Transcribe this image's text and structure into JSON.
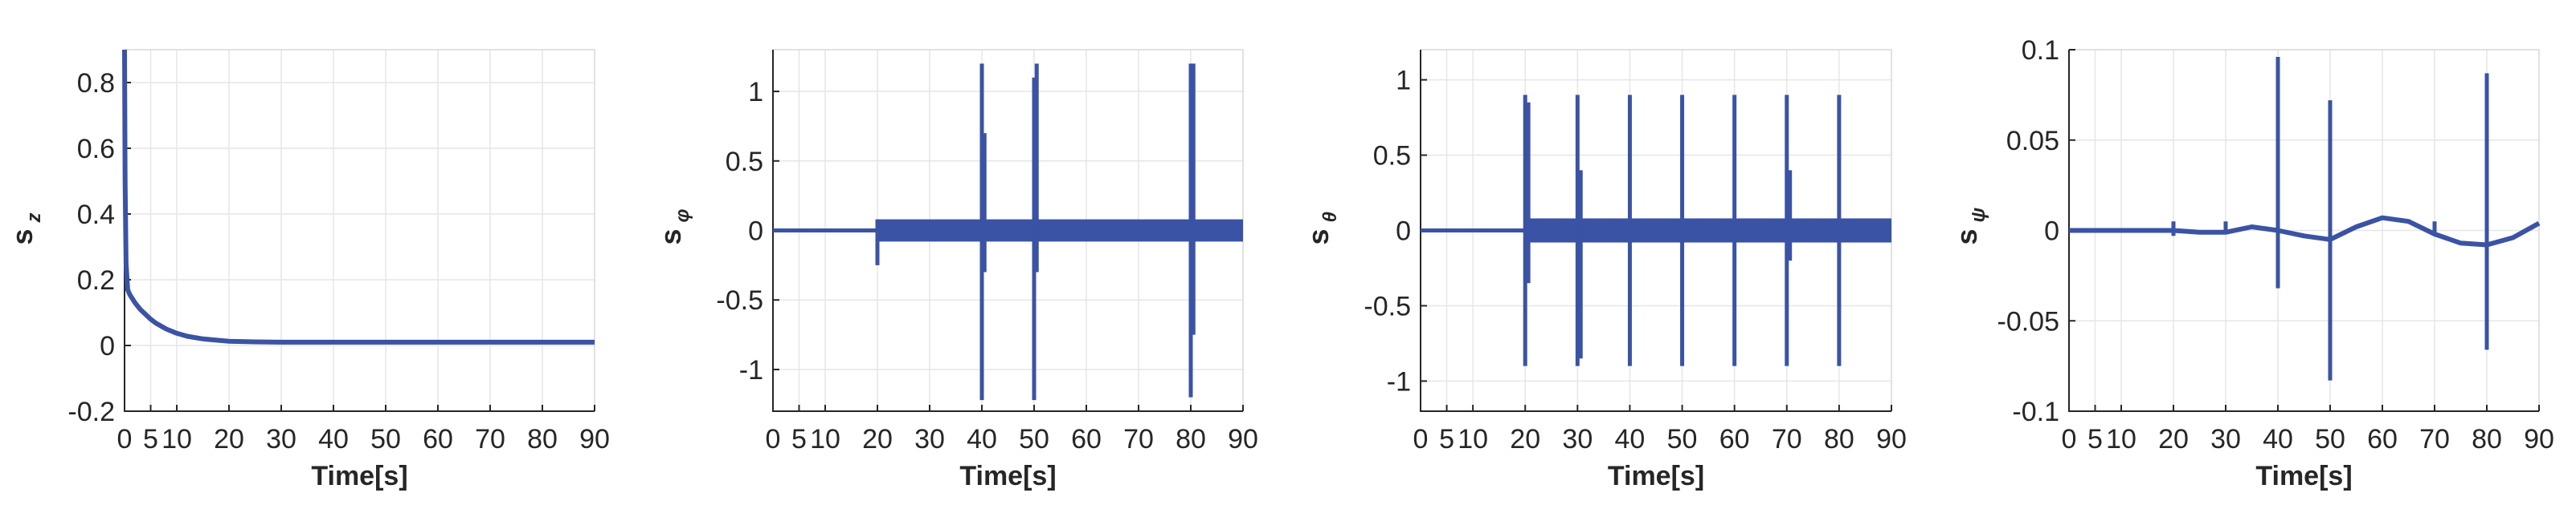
{
  "chart_data": [
    {
      "type": "line",
      "ylabel": "s",
      "ylabel_sub": "z",
      "xlabel": "Time[s]",
      "xlim": [
        0,
        90
      ],
      "ylim": [
        -0.2,
        0.9
      ],
      "grid": true,
      "x_ticks": [
        0,
        5,
        10,
        20,
        30,
        40,
        50,
        60,
        70,
        80,
        90
      ],
      "x_tick_labels": [
        "0",
        "5",
        "10",
        "20",
        "30",
        "40",
        "50",
        "60",
        "70",
        "80",
        "90"
      ],
      "y_ticks": [
        -0.2,
        0,
        0.2,
        0.4,
        0.6,
        0.8
      ],
      "y_tick_labels": [
        "-0.2",
        "0",
        "0.2",
        "0.4",
        "0.6",
        "0.8"
      ],
      "color": "#3a53a4",
      "series": [
        {
          "x": [
            0,
            0.1,
            0.3,
            0.6,
            1,
            2,
            3,
            4,
            5,
            6,
            8,
            10,
            12,
            15,
            20,
            25,
            30,
            40,
            50,
            60,
            70,
            80,
            90
          ],
          "y": [
            0.9,
            0.5,
            0.25,
            0.17,
            0.155,
            0.13,
            0.11,
            0.095,
            0.08,
            0.068,
            0.05,
            0.037,
            0.028,
            0.02,
            0.013,
            0.011,
            0.01,
            0.01,
            0.01,
            0.01,
            0.01,
            0.01,
            0.01
          ]
        }
      ]
    },
    {
      "type": "line",
      "ylabel": "s",
      "ylabel_sub": "φ",
      "xlabel": "Time[s]",
      "xlim": [
        0,
        90
      ],
      "ylim": [
        -1.3,
        1.3
      ],
      "grid": true,
      "x_ticks": [
        0,
        5,
        10,
        20,
        30,
        40,
        50,
        60,
        70,
        80,
        90
      ],
      "x_tick_labels": [
        "0",
        "5",
        "10",
        "20",
        "30",
        "40",
        "50",
        "60",
        "70",
        "80",
        "90"
      ],
      "y_ticks": [
        -1,
        -0.5,
        0,
        0.5,
        1
      ],
      "y_tick_labels": [
        "-1",
        "-0.5",
        "0",
        "0.5",
        "1"
      ],
      "color": "#3a53a4",
      "baseline": 0,
      "band": {
        "x_start": 20,
        "x_end": 90,
        "upper": 0.08,
        "lower": -0.08
      },
      "spikes": [
        {
          "x": 20,
          "ymax": 0.08,
          "ymin": -0.25
        },
        {
          "x": 40,
          "ymax": 1.2,
          "ymin": -1.22
        },
        {
          "x": 40.5,
          "ymax": 0.7,
          "ymin": -0.3
        },
        {
          "x": 50,
          "ymax": 1.1,
          "ymin": -1.22
        },
        {
          "x": 50.5,
          "ymax": 1.2,
          "ymin": -0.3
        },
        {
          "x": 80,
          "ymax": 1.2,
          "ymin": -1.2
        },
        {
          "x": 80.5,
          "ymax": 1.2,
          "ymin": -0.75
        }
      ]
    },
    {
      "type": "line",
      "ylabel": "s",
      "ylabel_sub": "θ",
      "xlabel": "Time[s]",
      "xlim": [
        0,
        90
      ],
      "ylim": [
        -1.2,
        1.2
      ],
      "grid": true,
      "x_ticks": [
        0,
        5,
        10,
        20,
        30,
        40,
        50,
        60,
        70,
        80,
        90
      ],
      "x_tick_labels": [
        "0",
        "5",
        "10",
        "20",
        "30",
        "40",
        "50",
        "60",
        "70",
        "80",
        "90"
      ],
      "y_ticks": [
        -1,
        -0.5,
        0,
        0.5,
        1
      ],
      "y_tick_labels": [
        "-1",
        "-0.5",
        "0",
        "0.5",
        "1"
      ],
      "color": "#3a53a4",
      "baseline": 0,
      "band": {
        "x_start": 20,
        "x_end": 90,
        "upper": 0.08,
        "lower": -0.08
      },
      "spikes": [
        {
          "x": 20,
          "ymax": 0.9,
          "ymin": -0.9
        },
        {
          "x": 20.6,
          "ymax": 0.85,
          "ymin": -0.35
        },
        {
          "x": 30,
          "ymax": 0.9,
          "ymin": -0.9
        },
        {
          "x": 30.6,
          "ymax": 0.4,
          "ymin": -0.85
        },
        {
          "x": 40,
          "ymax": 0.9,
          "ymin": -0.9
        },
        {
          "x": 50,
          "ymax": 0.9,
          "ymin": -0.9
        },
        {
          "x": 60,
          "ymax": 0.9,
          "ymin": -0.9
        },
        {
          "x": 70,
          "ymax": 0.9,
          "ymin": -0.9
        },
        {
          "x": 70.6,
          "ymax": 0.4,
          "ymin": -0.2
        },
        {
          "x": 80,
          "ymax": 0.9,
          "ymin": -0.9
        }
      ]
    },
    {
      "type": "line",
      "ylabel": "s",
      "ylabel_sub": "ψ",
      "xlabel": "Time[s]",
      "xlim": [
        0,
        90
      ],
      "ylim": [
        -0.1,
        0.1
      ],
      "grid": true,
      "x_ticks": [
        0,
        5,
        10,
        20,
        30,
        40,
        50,
        60,
        70,
        80,
        90
      ],
      "x_tick_labels": [
        "0",
        "5",
        "10",
        "20",
        "30",
        "40",
        "50",
        "60",
        "70",
        "80",
        "90"
      ],
      "y_ticks": [
        -0.1,
        -0.05,
        0,
        0.05,
        0.1
      ],
      "y_tick_labels": [
        "-0.1",
        "-0.05",
        "0",
        "0.05",
        "0.1"
      ],
      "color": "#3a53a4",
      "curve": {
        "x": [
          0,
          20,
          25,
          30,
          35,
          40,
          45,
          50,
          55,
          60,
          65,
          70,
          75,
          80,
          85,
          90
        ],
        "y": [
          0,
          0,
          -0.001,
          -0.001,
          0.002,
          0,
          -0.003,
          -0.005,
          0.002,
          0.007,
          0.005,
          -0.002,
          -0.007,
          -0.008,
          -0.004,
          0.004
        ]
      },
      "spikes": [
        {
          "x": 20,
          "ymax": 0.005,
          "ymin": -0.003
        },
        {
          "x": 30,
          "ymax": 0.005,
          "ymin": -0.002
        },
        {
          "x": 40,
          "ymax": 0.096,
          "ymin": -0.032
        },
        {
          "x": 50,
          "ymax": 0.072,
          "ymin": -0.083
        },
        {
          "x": 70,
          "ymax": 0.005,
          "ymin": -0.003
        },
        {
          "x": 80,
          "ymax": 0.087,
          "ymin": -0.066
        }
      ]
    }
  ]
}
